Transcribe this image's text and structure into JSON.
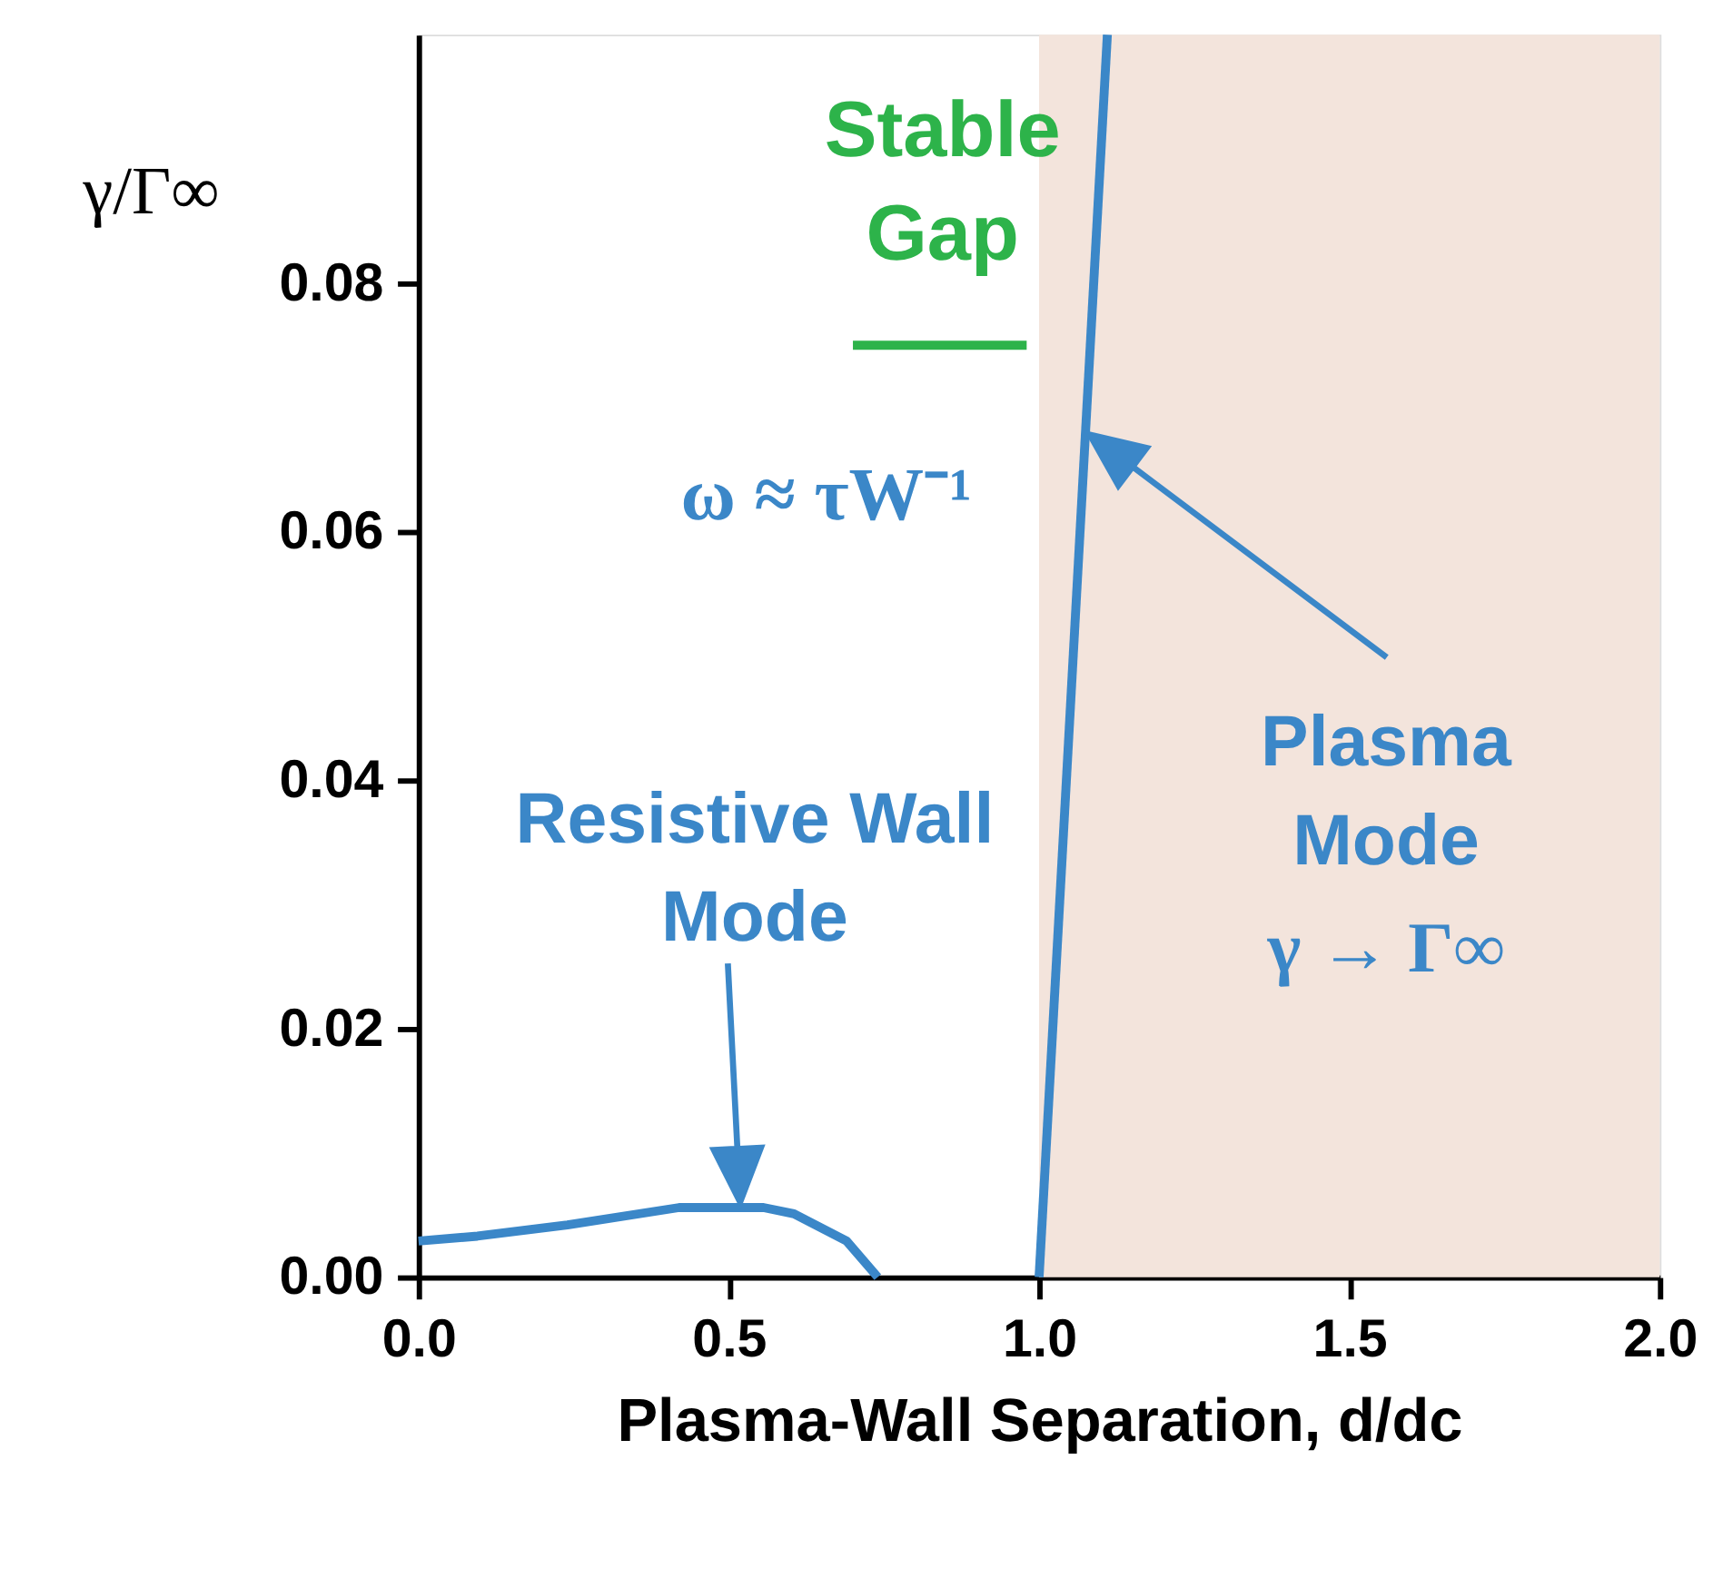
{
  "chart_data": {
    "type": "line",
    "xlabel": "Plasma-Wall Separation, d/dc",
    "ylabel": "γ/Γ∞",
    "xlim": [
      0,
      2
    ],
    "ylim": [
      0,
      0.1
    ],
    "xticks": [
      {
        "value": 0,
        "label": "0.0"
      },
      0.5,
      {
        "value": 1,
        "label": "1.0"
      },
      1.5,
      {
        "value": 2,
        "label": "2.0"
      }
    ],
    "yticks": [
      {
        "value": 0,
        "label": "0.00"
      },
      0.02,
      0.04,
      0.06,
      0.08
    ],
    "grid": false,
    "legend": false,
    "line_style": "solid",
    "marker": "none",
    "series": [
      {
        "color": "#3b87c8",
        "x": [
          0.0,
          0.095,
          0.24,
          0.42,
          0.556,
          0.605,
          0.69,
          0.74
        ],
        "values": [
          0.0029,
          0.0033,
          0.0042,
          0.0056,
          0.0056,
          0.0051,
          0.0029,
          0.0
        ]
      },
      {
        "color": "#3b87c8",
        "x": [
          1.0,
          1.11
        ],
        "values": [
          0.0,
          0.1
        ]
      },
      {
        "color": "#2db34a",
        "x": [
          0.7,
          0.98
        ],
        "values": [
          0.075,
          0.075
        ]
      }
    ],
    "bands": [
      {
        "axis": "x",
        "from": 1.0,
        "to": 2.0,
        "color": "#f3e4dc"
      }
    ],
    "annotations": [
      "Stable\nGap",
      "ω ≈ τW⁻¹",
      "Resistive Wall\nMode",
      "Plasma\nMode\nγ → Γ∞"
    ]
  }
}
